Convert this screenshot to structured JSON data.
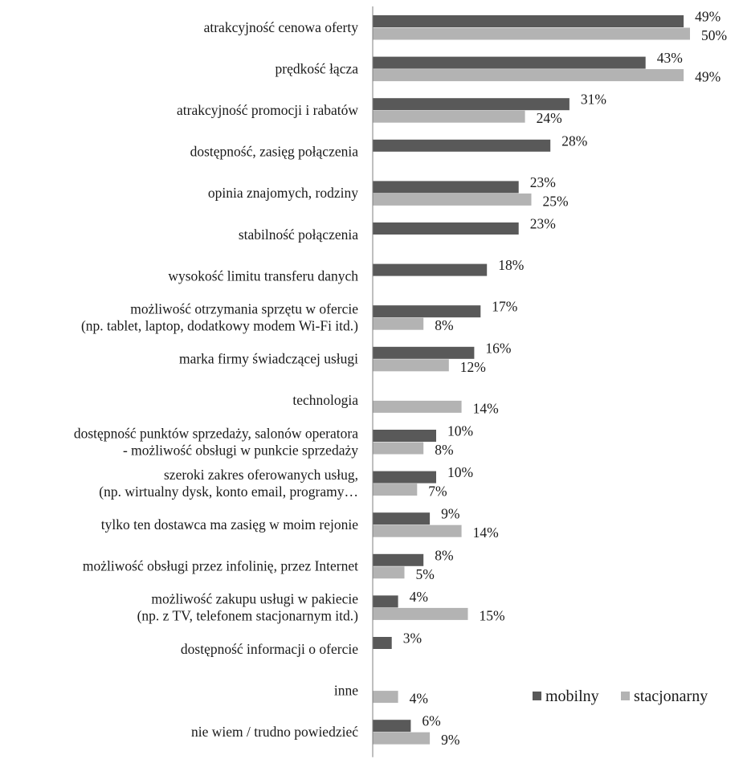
{
  "chart_data": {
    "type": "bar",
    "orientation": "horizontal",
    "categories": [
      [
        "atrakcyjność cenowa oferty"
      ],
      [
        "prędkość łącza"
      ],
      [
        "atrakcyjność promocji i rabatów"
      ],
      [
        "dostępność, zasięg połączenia"
      ],
      [
        "opinia znajomych, rodziny"
      ],
      [
        "stabilność połączenia"
      ],
      [
        "wysokość limitu transferu danych"
      ],
      [
        "możliwość otrzymania sprzętu w ofercie",
        "(np. tablet, laptop, dodatkowy modem Wi-Fi itd.)"
      ],
      [
        "marka firmy świadczącej usługi"
      ],
      [
        "technologia"
      ],
      [
        "dostępność punktów sprzedaży, salonów operatora",
        "- możliwość obsługi w punkcie sprzedaży"
      ],
      [
        "szeroki zakres oferowanych usług,",
        "(np. wirtualny dysk, konto email, programy…"
      ],
      [
        "tylko ten dostawca ma zasięg w moim rejonie"
      ],
      [
        "możliwość obsługi przez infolinię, przez Internet"
      ],
      [
        "możliwość zakupu usługi w pakiecie",
        "(np. z TV, telefonem stacjonarnym itd.)"
      ],
      [
        "dostępność informacji o ofercie"
      ],
      [
        "inne"
      ],
      [
        "nie wiem / trudno powiedzieć"
      ]
    ],
    "series": [
      {
        "name": "mobilny",
        "color": "#595959",
        "values": [
          49,
          43,
          31,
          28,
          23,
          23,
          18,
          17,
          16,
          null,
          10,
          10,
          9,
          8,
          4,
          3,
          null,
          6
        ]
      },
      {
        "name": "stacjonarny",
        "color": "#b3b3b3",
        "values": [
          50,
          49,
          24,
          null,
          25,
          null,
          null,
          8,
          12,
          14,
          8,
          7,
          14,
          5,
          15,
          null,
          4,
          9
        ]
      }
    ],
    "value_suffix": "%",
    "xlim": [
      0,
      50
    ],
    "grid": false,
    "legend_position": "bottom-right"
  }
}
